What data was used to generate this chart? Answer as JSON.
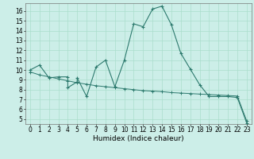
{
  "title": "",
  "xlabel": "Humidex (Indice chaleur)",
  "bg_color": "#cceee8",
  "grid_color": "#aaddcc",
  "line_color": "#2d7a6e",
  "series1_x": [
    0,
    1,
    2,
    3,
    4,
    4,
    5,
    5,
    6,
    7,
    8,
    9,
    10,
    11,
    12,
    13,
    14,
    15,
    16,
    17,
    18,
    19,
    20,
    21,
    22,
    23
  ],
  "series1_y": [
    10.0,
    10.5,
    9.2,
    9.3,
    9.3,
    8.2,
    8.8,
    9.2,
    7.3,
    10.3,
    11.0,
    8.3,
    11.0,
    14.7,
    14.4,
    16.2,
    16.5,
    14.6,
    11.7,
    10.1,
    8.5,
    7.3,
    7.3,
    7.3,
    7.2,
    4.6
  ],
  "series2_x": [
    0,
    1,
    2,
    3,
    4,
    5,
    6,
    7,
    8,
    9,
    10,
    11,
    12,
    13,
    14,
    15,
    16,
    17,
    18,
    19,
    20,
    21,
    22,
    23
  ],
  "series2_y": [
    9.8,
    9.5,
    9.3,
    9.1,
    8.9,
    8.7,
    8.55,
    8.4,
    8.3,
    8.2,
    8.1,
    8.0,
    7.9,
    7.85,
    7.8,
    7.7,
    7.65,
    7.6,
    7.55,
    7.5,
    7.45,
    7.4,
    7.35,
    4.8
  ],
  "xlim": [
    -0.5,
    23.5
  ],
  "ylim": [
    4.5,
    16.8
  ],
  "yticks": [
    5,
    6,
    7,
    8,
    9,
    10,
    11,
    12,
    13,
    14,
    15,
    16
  ],
  "xticks": [
    0,
    1,
    2,
    3,
    4,
    5,
    6,
    7,
    8,
    9,
    10,
    11,
    12,
    13,
    14,
    15,
    16,
    17,
    18,
    19,
    20,
    21,
    22,
    23
  ],
  "tick_fontsize": 5.5,
  "xlabel_fontsize": 6.5
}
